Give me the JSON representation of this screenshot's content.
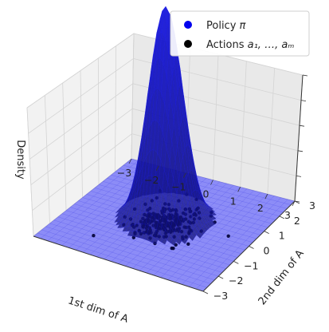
{
  "chart_data": {
    "type": "surface3d",
    "title": "",
    "xlabel": "1st dim of A",
    "ylabel": "2nd dim of A",
    "zlabel": "Density",
    "xlim": [
      -3,
      3
    ],
    "ylim": [
      -3,
      3
    ],
    "xticks": [
      "−3",
      "−2",
      "−1",
      "0",
      "1",
      "2",
      "3"
    ],
    "yticks": [
      "−3",
      "−2",
      "−1",
      "0",
      "1",
      "2",
      "3"
    ],
    "grid": true,
    "legend_position": "top-right",
    "legend": [
      {
        "label_text": "Policy ",
        "label_symbol": "π",
        "color": "#0000ee",
        "marker": "circle"
      },
      {
        "label_text": "Actions ",
        "label_symbol": "a₁, …, aₘ",
        "color": "#000000",
        "marker": "circle"
      }
    ],
    "policy_density": {
      "distribution": "gaussian",
      "mean": [
        0,
        0
      ],
      "std": [
        0.55,
        0.55
      ],
      "color": "#0000ee",
      "surface_alpha": 0.75,
      "floor_alpha": 0.45
    },
    "actions": {
      "approx_count": 240,
      "mean": [
        0,
        0
      ],
      "std": [
        0.55,
        0.55
      ],
      "color": "#000033"
    }
  }
}
